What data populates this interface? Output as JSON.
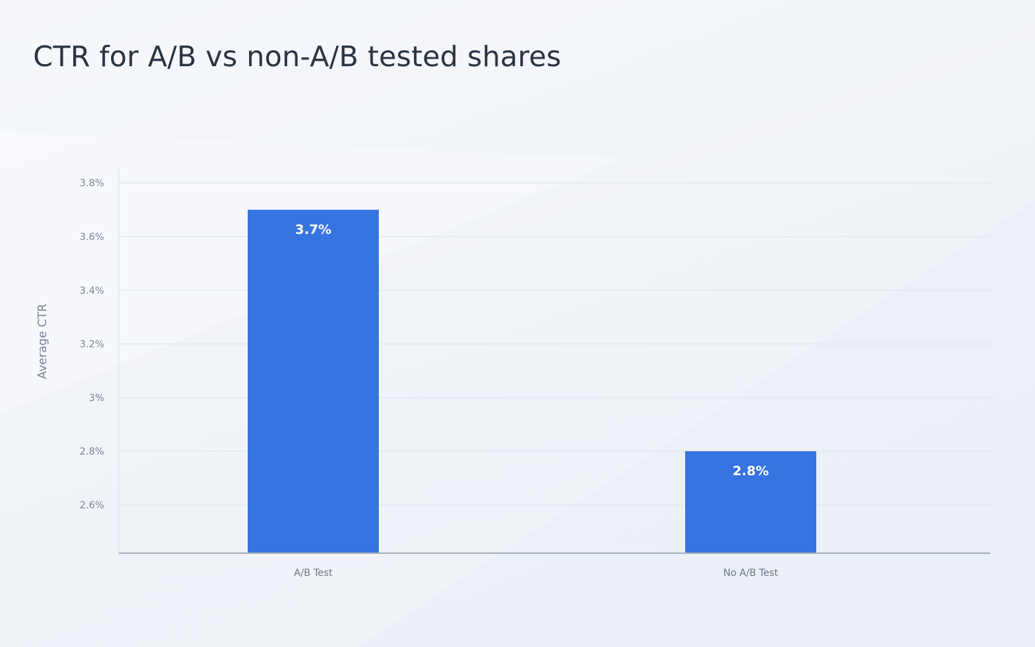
{
  "chart_data": {
    "type": "bar",
    "title": "CTR for A/B vs non-A/B tested shares",
    "xlabel": "",
    "ylabel": "Average CTR",
    "categories": [
      "A/B Test",
      "No A/B Test"
    ],
    "values": [
      3.7,
      2.8
    ],
    "data_labels": [
      "3.7%",
      "2.8%"
    ],
    "ylim": [
      2.42,
      3.8
    ],
    "yticks": [
      {
        "value": 3.8,
        "label": "3.8%"
      },
      {
        "value": 3.6,
        "label": "3.6%"
      },
      {
        "value": 3.4,
        "label": "3.4%"
      },
      {
        "value": 3.2,
        "label": "3.2%"
      },
      {
        "value": 3.0,
        "label": "3%"
      },
      {
        "value": 2.8,
        "label": "2.8%"
      },
      {
        "value": 2.6,
        "label": "2.6%"
      }
    ],
    "grid": true,
    "legend": "none",
    "colors": {
      "bar": "#3674e0",
      "grid": "#e3e8ef",
      "axis": "#a6afbb",
      "title": "#2a3441"
    }
  }
}
